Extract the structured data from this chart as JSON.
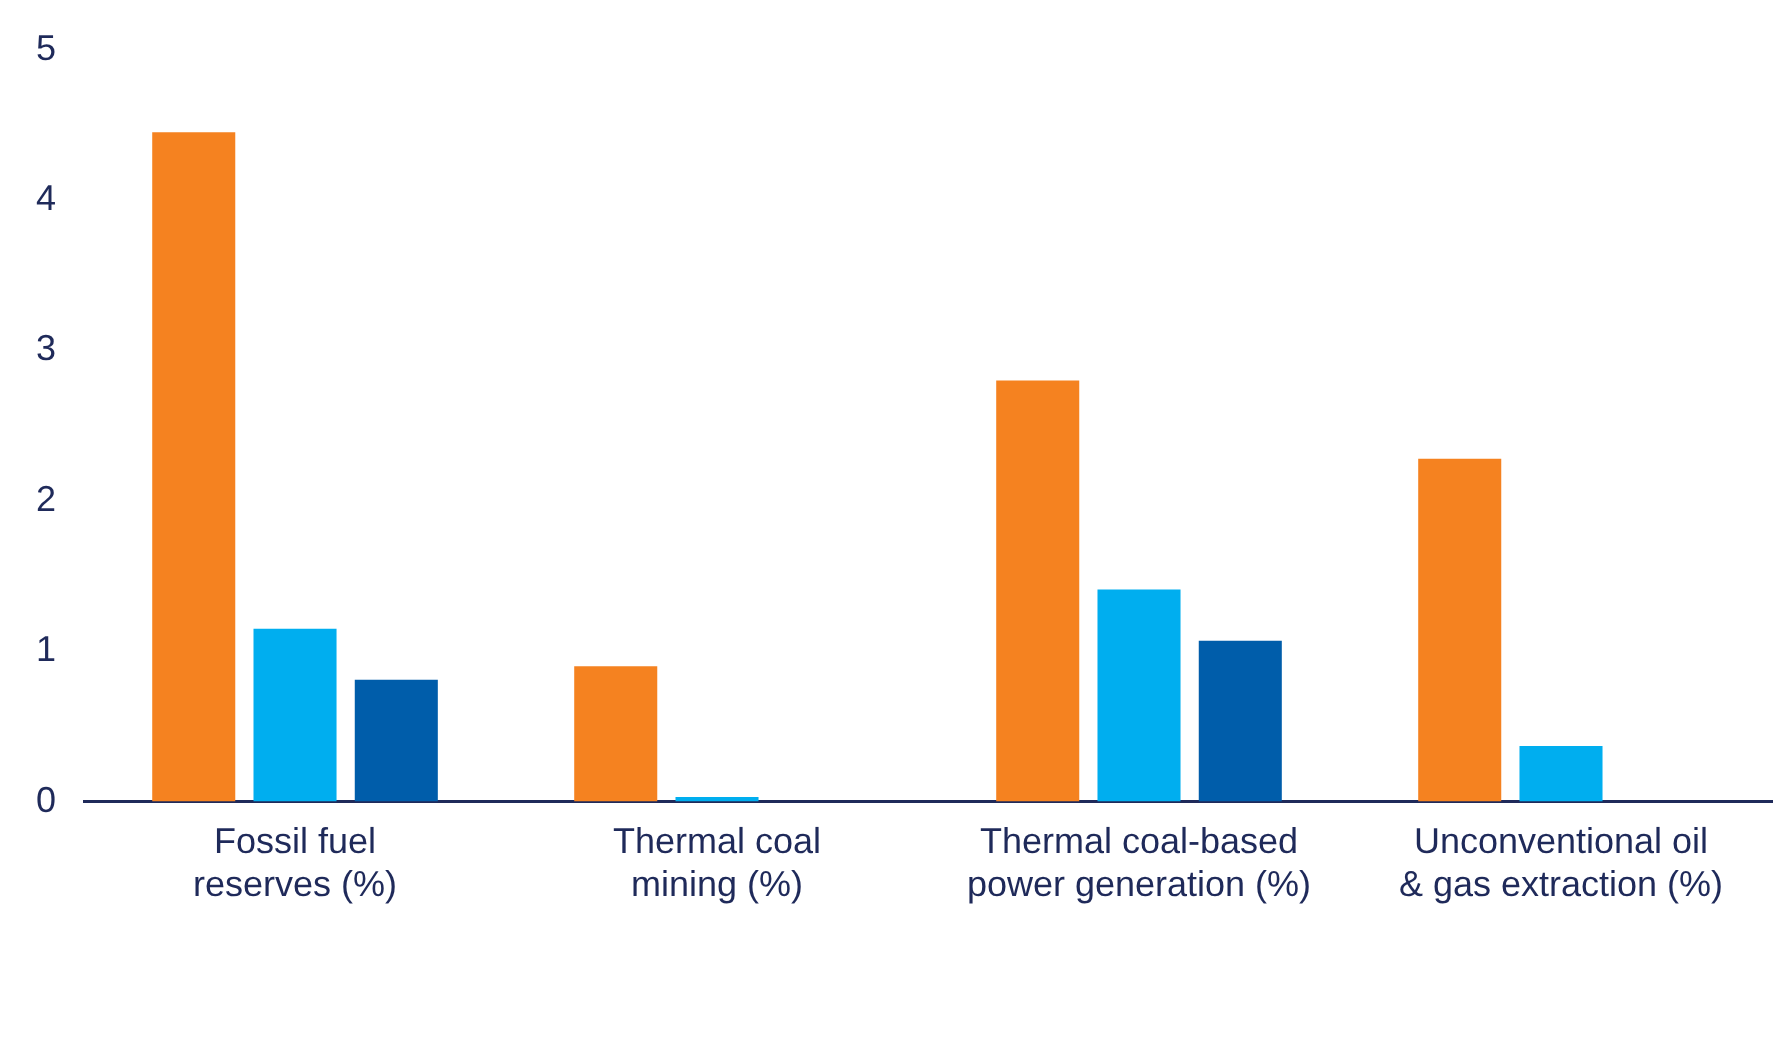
{
  "chart_data": {
    "type": "bar",
    "categories": [
      "Fossil fuel reserves (%)",
      "Thermal coal mining (%)",
      "Thermal coal-based power generation (%)",
      "Unconventional oil & gas extraction (%)"
    ],
    "series": [
      {
        "color": "#f58220",
        "values": [
          4.45,
          0.9,
          2.8,
          2.28
        ]
      },
      {
        "color": "#00aeef",
        "values": [
          1.15,
          0.03,
          1.41,
          0.37
        ]
      },
      {
        "color": "#005daa",
        "values": [
          0.81,
          0,
          1.07,
          0
        ]
      }
    ],
    "ylim": [
      0,
      5
    ],
    "yticks": [
      0,
      1,
      2,
      3,
      4,
      5
    ],
    "grid": false,
    "legend": false
  }
}
